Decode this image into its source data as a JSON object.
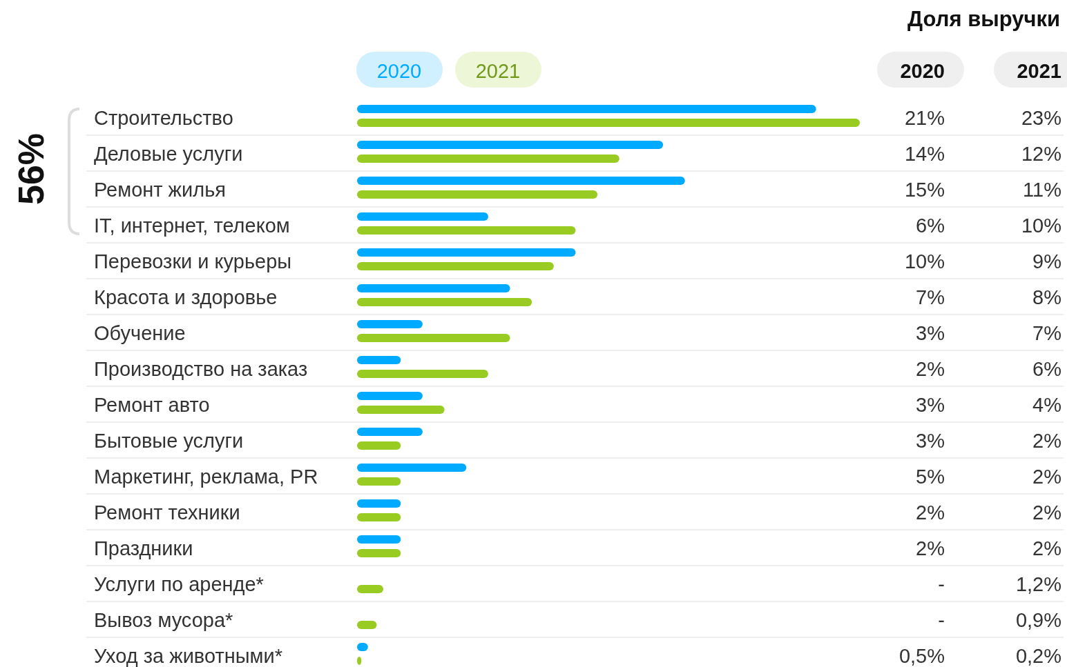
{
  "chart_data": {
    "type": "bar",
    "orientation": "horizontal",
    "title": "Доля выручки",
    "legend": "top",
    "categories": [
      "Строительство",
      "Деловые услуги",
      "Ремонт жилья",
      "IT, интернет, телеком",
      "Перевозки и курьеры",
      "Красота и здоровье",
      "Обучение",
      "Производство на заказ",
      "Ремонт авто",
      "Бытовые услуги",
      "Маркетинг, реклама, PR",
      "Ремонт техники",
      "Праздники",
      "Услуги по аренде*",
      "Вывоз мусора*",
      "Уход за животными*"
    ],
    "series": [
      {
        "name": "2020",
        "color": "#00aaff",
        "values": [
          21,
          14,
          15,
          6,
          10,
          7,
          3,
          2,
          3,
          3,
          5,
          2,
          2,
          null,
          null,
          0.5
        ],
        "value_labels": [
          "21%",
          "14%",
          "15%",
          "6%",
          "10%",
          "7%",
          "3%",
          "2%",
          "3%",
          "3%",
          "5%",
          "2%",
          "2%",
          "-",
          "-",
          "0,5%"
        ]
      },
      {
        "name": "2021",
        "color": "#99cc22",
        "values": [
          23,
          12,
          11,
          10,
          9,
          8,
          7,
          6,
          4,
          2,
          2,
          2,
          2,
          1.2,
          0.9,
          0.2
        ],
        "value_labels": [
          "23%",
          "12%",
          "11%",
          "10%",
          "9%",
          "8%",
          "7%",
          "6%",
          "4%",
          "2%",
          "2%",
          "2%",
          "2%",
          "1,2%",
          "0,9%",
          "0,2%"
        ]
      }
    ],
    "annotations": [
      "56%"
    ]
  }
}
